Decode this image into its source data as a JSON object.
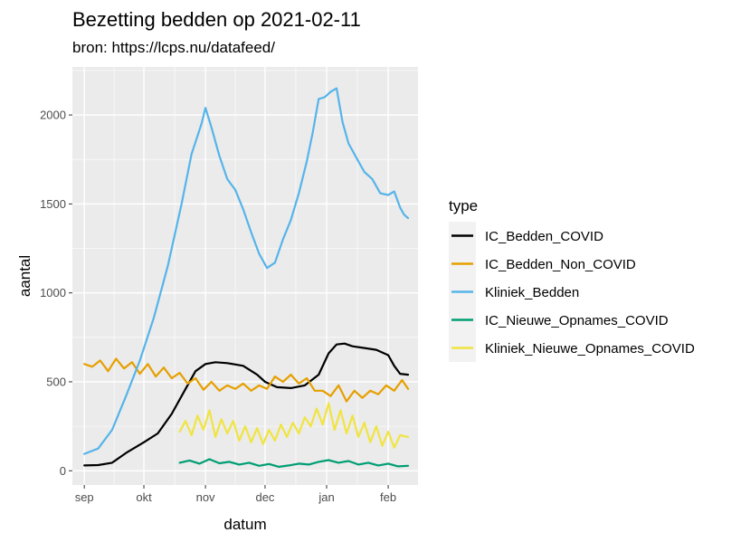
{
  "chart_data": {
    "type": "line",
    "title": "Bezetting bedden op 2021-02-11",
    "subtitle": "bron: https://lcps.nu/datafeed/",
    "xlabel": "datum",
    "ylabel": "aantal",
    "x_ticks": [
      "sep",
      "okt",
      "nov",
      "dec",
      "jan",
      "feb"
    ],
    "x_tick_dates": [
      "2020-09-01",
      "2020-10-01",
      "2020-11-01",
      "2020-12-01",
      "2021-01-01",
      "2021-02-01"
    ],
    "xlim": [
      "2020-08-26",
      "2021-02-16"
    ],
    "y_ticks": [
      0,
      500,
      1000,
      1500,
      2000
    ],
    "ylim": [
      -80,
      2270
    ],
    "grid": true,
    "legend_title": "type",
    "legend_position": "right",
    "series": [
      {
        "name": "IC_Bedden_COVID",
        "color": "#000000",
        "x": [
          "2020-09-01",
          "2020-09-08",
          "2020-09-15",
          "2020-09-22",
          "2020-10-01",
          "2020-10-08",
          "2020-10-15",
          "2020-10-22",
          "2020-10-27",
          "2020-11-01",
          "2020-11-06",
          "2020-11-12",
          "2020-11-20",
          "2020-11-27",
          "2020-12-01",
          "2020-12-07",
          "2020-12-14",
          "2020-12-21",
          "2020-12-28",
          "2021-01-02",
          "2021-01-06",
          "2021-01-10",
          "2021-01-14",
          "2021-01-20",
          "2021-01-26",
          "2021-02-01",
          "2021-02-04",
          "2021-02-07",
          "2021-02-11"
        ],
        "values": [
          30,
          32,
          45,
          100,
          160,
          210,
          320,
          460,
          560,
          600,
          610,
          605,
          590,
          540,
          500,
          470,
          465,
          480,
          540,
          660,
          710,
          715,
          700,
          690,
          680,
          650,
          590,
          545,
          540
        ]
      },
      {
        "name": "IC_Bedden_Non_COVID",
        "color": "#E69F00",
        "x": [
          "2020-09-01",
          "2020-09-05",
          "2020-09-09",
          "2020-09-13",
          "2020-09-17",
          "2020-09-21",
          "2020-09-25",
          "2020-09-29",
          "2020-10-03",
          "2020-10-07",
          "2020-10-11",
          "2020-10-15",
          "2020-10-19",
          "2020-10-23",
          "2020-10-27",
          "2020-10-31",
          "2020-11-04",
          "2020-11-08",
          "2020-11-12",
          "2020-11-16",
          "2020-11-20",
          "2020-11-24",
          "2020-11-28",
          "2020-12-02",
          "2020-12-06",
          "2020-12-10",
          "2020-12-14",
          "2020-12-18",
          "2020-12-22",
          "2020-12-26",
          "2020-12-30",
          "2021-01-03",
          "2021-01-07",
          "2021-01-11",
          "2021-01-15",
          "2021-01-19",
          "2021-01-23",
          "2021-01-27",
          "2021-01-31",
          "2021-02-04",
          "2021-02-08",
          "2021-02-11"
        ],
        "values": [
          600,
          585,
          620,
          560,
          630,
          575,
          610,
          545,
          600,
          530,
          580,
          520,
          550,
          490,
          520,
          455,
          500,
          450,
          480,
          460,
          490,
          450,
          480,
          460,
          530,
          500,
          540,
          490,
          520,
          450,
          450,
          420,
          480,
          390,
          450,
          410,
          450,
          430,
          480,
          450,
          510,
          460
        ]
      },
      {
        "name": "Kliniek_Bedden",
        "color": "#56B4E9",
        "x": [
          "2020-09-01",
          "2020-09-08",
          "2020-09-15",
          "2020-09-22",
          "2020-09-29",
          "2020-10-06",
          "2020-10-13",
          "2020-10-20",
          "2020-10-25",
          "2020-10-30",
          "2020-11-01",
          "2020-11-04",
          "2020-11-08",
          "2020-11-12",
          "2020-11-16",
          "2020-11-20",
          "2020-11-24",
          "2020-11-28",
          "2020-12-02",
          "2020-12-06",
          "2020-12-10",
          "2020-12-14",
          "2020-12-18",
          "2020-12-22",
          "2020-12-25",
          "2020-12-28",
          "2020-12-31",
          "2021-01-03",
          "2021-01-06",
          "2021-01-09",
          "2021-01-12",
          "2021-01-16",
          "2021-01-20",
          "2021-01-24",
          "2021-01-28",
          "2021-02-01",
          "2021-02-04",
          "2021-02-07",
          "2021-02-09",
          "2021-02-11"
        ],
        "values": [
          95,
          125,
          230,
          420,
          620,
          860,
          1150,
          1500,
          1780,
          1950,
          2040,
          1930,
          1770,
          1640,
          1580,
          1470,
          1340,
          1220,
          1140,
          1170,
          1300,
          1410,
          1560,
          1740,
          1900,
          2090,
          2100,
          2130,
          2150,
          1960,
          1840,
          1760,
          1680,
          1640,
          1560,
          1550,
          1570,
          1480,
          1440,
          1420
        ]
      },
      {
        "name": "IC_Nieuwe_Opnames_COVID",
        "color": "#009E73",
        "x": [
          "2020-10-19",
          "2020-10-24",
          "2020-10-29",
          "2020-11-03",
          "2020-11-08",
          "2020-11-13",
          "2020-11-18",
          "2020-11-23",
          "2020-11-28",
          "2020-12-03",
          "2020-12-08",
          "2020-12-13",
          "2020-12-18",
          "2020-12-23",
          "2020-12-28",
          "2021-01-02",
          "2021-01-07",
          "2021-01-12",
          "2021-01-17",
          "2021-01-22",
          "2021-01-27",
          "2021-02-01",
          "2021-02-06",
          "2021-02-11"
        ],
        "values": [
          45,
          58,
          40,
          65,
          42,
          50,
          35,
          45,
          28,
          38,
          22,
          30,
          40,
          35,
          50,
          60,
          45,
          55,
          35,
          45,
          30,
          40,
          25,
          28
        ]
      },
      {
        "name": "Kliniek_Nieuwe_Opnames_COVID",
        "color": "#F0E442",
        "x": [
          "2020-10-19",
          "2020-10-22",
          "2020-10-25",
          "2020-10-28",
          "2020-10-31",
          "2020-11-03",
          "2020-11-06",
          "2020-11-09",
          "2020-11-12",
          "2020-11-15",
          "2020-11-18",
          "2020-11-21",
          "2020-11-24",
          "2020-11-27",
          "2020-11-30",
          "2020-12-03",
          "2020-12-06",
          "2020-12-09",
          "2020-12-12",
          "2020-12-15",
          "2020-12-18",
          "2020-12-21",
          "2020-12-24",
          "2020-12-27",
          "2020-12-30",
          "2021-01-02",
          "2021-01-05",
          "2021-01-08",
          "2021-01-11",
          "2021-01-14",
          "2021-01-17",
          "2021-01-20",
          "2021-01-23",
          "2021-01-26",
          "2021-01-29",
          "2021-02-01",
          "2021-02-04",
          "2021-02-07",
          "2021-02-11"
        ],
        "values": [
          220,
          280,
          200,
          310,
          230,
          340,
          190,
          290,
          210,
          280,
          170,
          250,
          160,
          240,
          150,
          230,
          170,
          260,
          190,
          270,
          210,
          300,
          250,
          350,
          260,
          380,
          230,
          340,
          210,
          310,
          190,
          270,
          160,
          250,
          140,
          220,
          130,
          200,
          190
        ]
      }
    ]
  }
}
